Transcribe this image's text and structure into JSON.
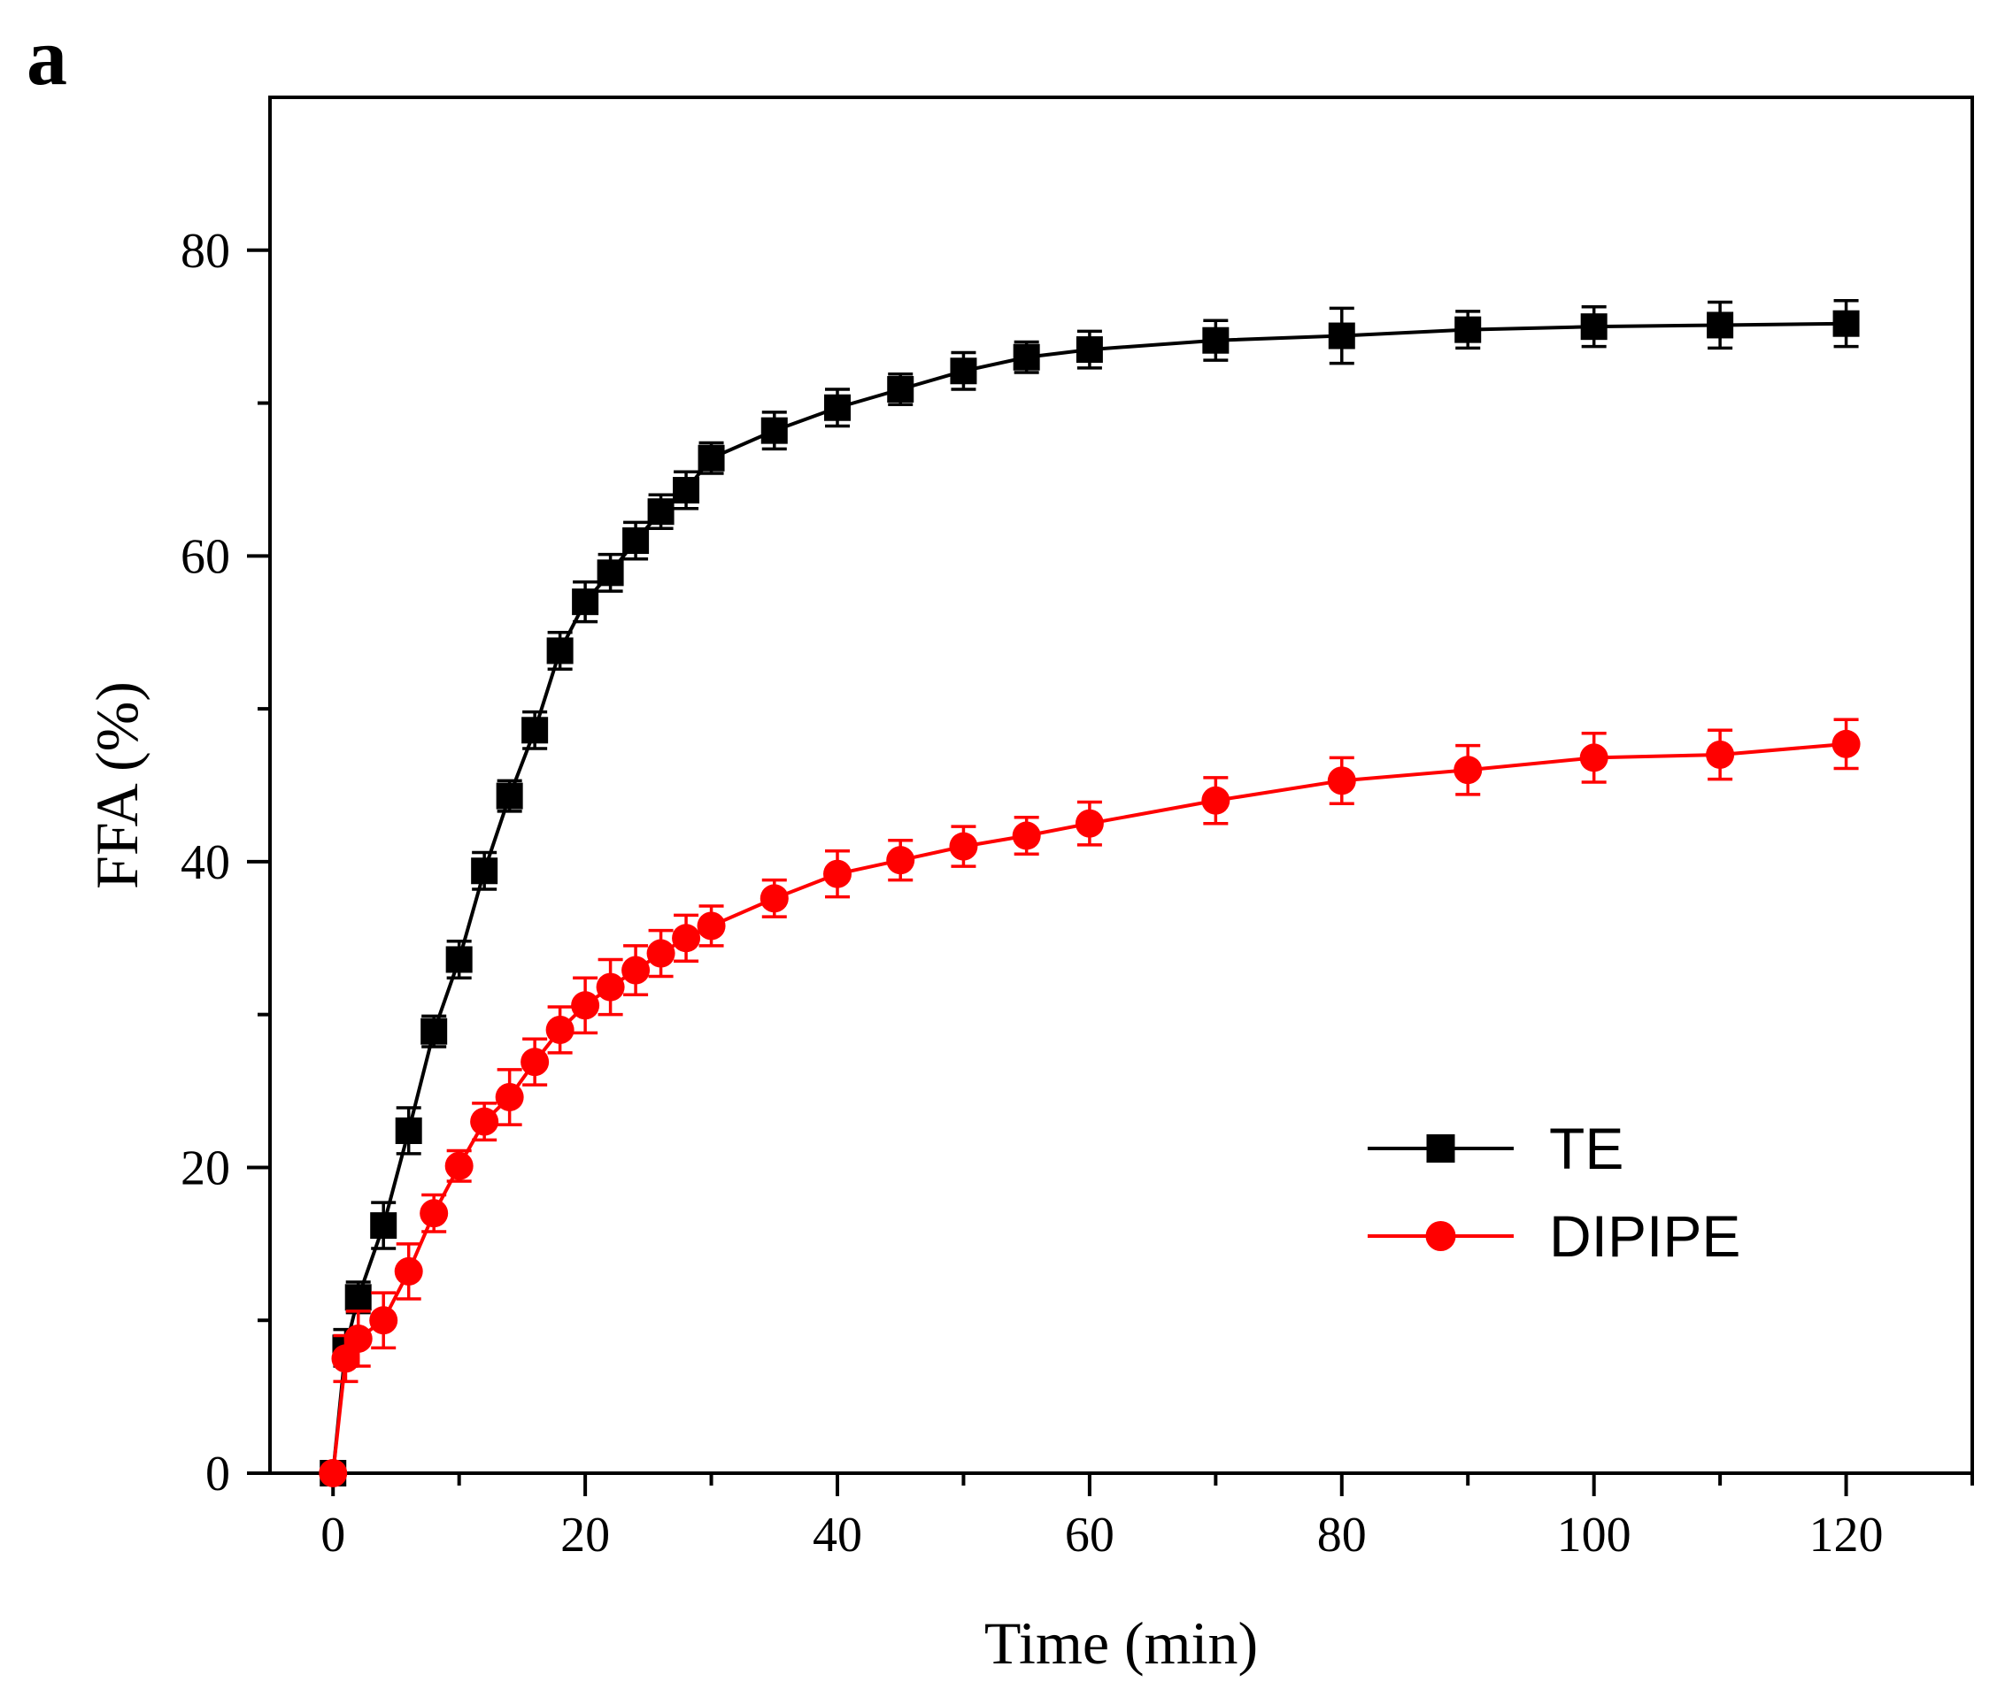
{
  "chart_data": {
    "type": "line",
    "panel_label": "a",
    "title": "",
    "xlabel": "Time (min)",
    "ylabel": "FFA (%)",
    "xlim": [
      -5,
      130
    ],
    "ylim": [
      0,
      90
    ],
    "x_ticks": [
      0,
      20,
      40,
      60,
      80,
      100,
      120
    ],
    "y_ticks": [
      0,
      20,
      40,
      60,
      80
    ],
    "y_minor_ticks": [
      10,
      30,
      50,
      70
    ],
    "x_minor_ticks": [
      10,
      30,
      50,
      70,
      90,
      110,
      130
    ],
    "grid": false,
    "legend_position": "center-right",
    "series": [
      {
        "name": "TE",
        "color": "#000000",
        "marker": "square",
        "x": [
          0,
          1,
          2,
          4,
          6,
          8,
          10,
          12,
          14,
          16,
          18,
          20,
          22,
          24,
          26,
          28,
          30,
          35,
          40,
          45,
          50,
          55,
          60,
          70,
          80,
          90,
          100,
          110,
          120
        ],
        "values": [
          0,
          8.2,
          11.5,
          16.2,
          22.4,
          28.9,
          33.6,
          39.4,
          44.3,
          48.6,
          53.8,
          57.0,
          58.9,
          61.0,
          62.9,
          64.3,
          66.4,
          68.2,
          69.7,
          70.9,
          72.1,
          73.0,
          73.5,
          74.1,
          74.4,
          74.8,
          75.0,
          75.1,
          75.2
        ],
        "errors": [
          0,
          1.2,
          1.0,
          1.5,
          1.5,
          1.0,
          1.2,
          1.2,
          1.0,
          1.2,
          1.2,
          1.3,
          1.2,
          1.2,
          1.1,
          1.2,
          1.0,
          1.2,
          1.2,
          1.0,
          1.2,
          1.0,
          1.2,
          1.3,
          1.8,
          1.2,
          1.3,
          1.5,
          1.5
        ]
      },
      {
        "name": "DIPIPE",
        "color": "#ff0000",
        "marker": "circle",
        "x": [
          0,
          1,
          2,
          4,
          6,
          8,
          10,
          12,
          14,
          16,
          18,
          20,
          22,
          24,
          26,
          28,
          30,
          35,
          40,
          45,
          50,
          55,
          60,
          70,
          80,
          90,
          100,
          110,
          120
        ],
        "values": [
          0,
          7.5,
          8.8,
          10.0,
          13.2,
          17.0,
          20.1,
          23.0,
          24.6,
          26.9,
          29.0,
          30.6,
          31.8,
          32.9,
          34.0,
          35.0,
          35.8,
          37.6,
          39.2,
          40.1,
          41.0,
          41.7,
          42.5,
          44.0,
          45.3,
          46.0,
          46.8,
          47.0,
          47.7
        ],
        "errors": [
          0,
          1.5,
          1.8,
          1.8,
          1.8,
          1.2,
          1.0,
          1.2,
          1.8,
          1.5,
          1.5,
          1.8,
          1.8,
          1.6,
          1.5,
          1.5,
          1.3,
          1.2,
          1.5,
          1.3,
          1.3,
          1.2,
          1.4,
          1.5,
          1.5,
          1.6,
          1.6,
          1.6,
          1.6
        ]
      }
    ]
  }
}
